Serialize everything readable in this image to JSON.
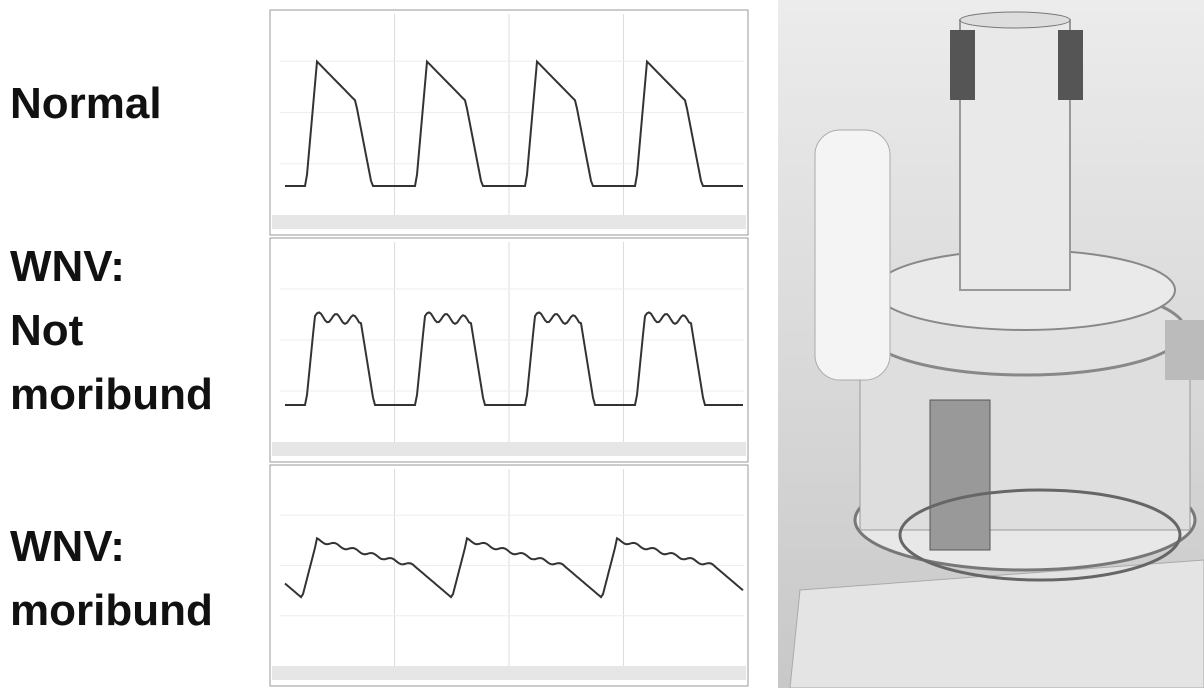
{
  "labels": [
    {
      "lines": [
        "Normal"
      ]
    },
    {
      "lines": [
        "WNV:",
        "Not",
        "moribund"
      ]
    },
    {
      "lines": [
        "WNV:",
        "moribund"
      ]
    }
  ]
}
